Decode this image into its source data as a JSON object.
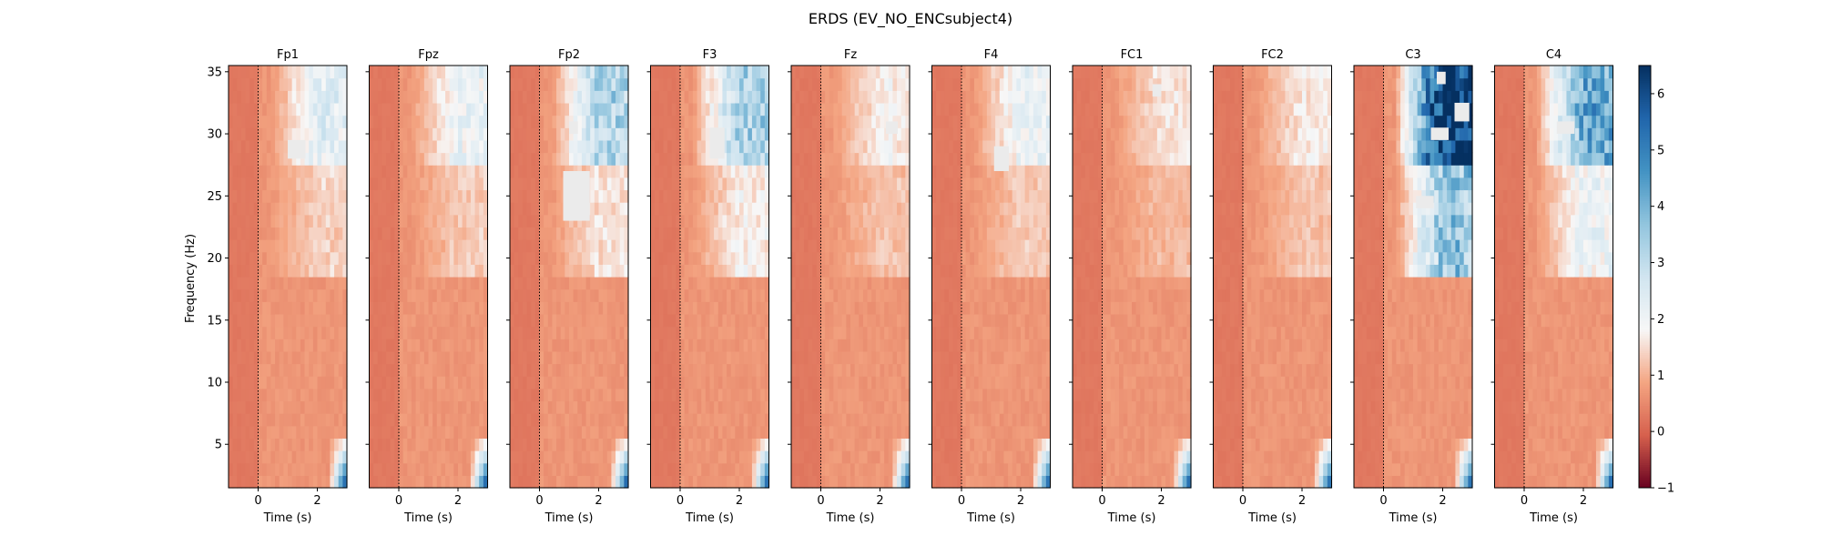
{
  "chart_data": {
    "type": "heatmap",
    "title": "ERDS (EV_NO_ENCsubject4)",
    "ylabel": "Frequency (Hz)",
    "xlabel": "Time (s)",
    "xlim": [
      -1,
      3
    ],
    "ylim": [
      1.5,
      35.5
    ],
    "x_ticks": [
      0,
      2
    ],
    "y_ticks": [
      5,
      10,
      15,
      20,
      25,
      30,
      35
    ],
    "event_time": 0,
    "colorbar": {
      "vmin": -1,
      "vmax": 6.5,
      "ticks": [
        -1,
        0,
        1,
        2,
        3,
        4,
        5,
        6
      ],
      "colormap": "RdBu",
      "colors": [
        "#67001f",
        "#d6604d",
        "#f4a582",
        "#f7f7f7",
        "#d1e5f0",
        "#92c5de",
        "#4393c3",
        "#2166ac",
        "#053061"
      ]
    },
    "panels": [
      {
        "channel": "Fp1",
        "high_beta": 1.8,
        "mid_beta": 0.8,
        "blobs": [
          {
            "t0": 1.0,
            "t1": 1.6,
            "f0": 28,
            "f1": 29.5
          }
        ]
      },
      {
        "channel": "Fpz",
        "high_beta": 1.6,
        "mid_beta": 0.7,
        "blobs": []
      },
      {
        "channel": "Fp2",
        "high_beta": 2.8,
        "mid_beta": 1.0,
        "blobs": [
          {
            "t0": 0.8,
            "t1": 1.7,
            "f0": 23,
            "f1": 27
          },
          {
            "t0": 1.0,
            "t1": 1.3,
            "f0": 30,
            "f1": 31
          }
        ]
      },
      {
        "channel": "F3",
        "high_beta": 2.8,
        "mid_beta": 1.2,
        "blobs": [
          {
            "t0": 1.0,
            "t1": 1.5,
            "f0": 28,
            "f1": 30.5
          }
        ]
      },
      {
        "channel": "Fz",
        "high_beta": 1.2,
        "mid_beta": 0.6,
        "blobs": [
          {
            "t0": 2.2,
            "t1": 2.6,
            "f0": 30,
            "f1": 31
          }
        ]
      },
      {
        "channel": "F4",
        "high_beta": 1.6,
        "mid_beta": 0.7,
        "blobs": [
          {
            "t0": 1.1,
            "t1": 1.6,
            "f0": 27,
            "f1": 29
          }
        ]
      },
      {
        "channel": "FC1",
        "high_beta": 1.0,
        "mid_beta": 0.5,
        "blobs": [
          {
            "t0": 1.7,
            "t1": 2.0,
            "f0": 33,
            "f1": 34
          }
        ]
      },
      {
        "channel": "FC2",
        "high_beta": 1.1,
        "mid_beta": 0.6,
        "blobs": []
      },
      {
        "channel": "C3",
        "high_beta": 6.5,
        "mid_beta": 3.2,
        "blobs": [
          {
            "t0": 1.6,
            "t1": 2.2,
            "f0": 29.5,
            "f1": 30.5
          },
          {
            "t0": 1.1,
            "t1": 1.7,
            "f0": 24,
            "f1": 25
          },
          {
            "t0": 2.4,
            "t1": 2.9,
            "f0": 31,
            "f1": 32.5
          },
          {
            "t0": 1.8,
            "t1": 2.1,
            "f0": 34,
            "f1": 35
          }
        ]
      },
      {
        "channel": "C4",
        "high_beta": 3.8,
        "mid_beta": 1.6,
        "blobs": [
          {
            "t0": 1.1,
            "t1": 1.7,
            "f0": 30,
            "f1": 31
          }
        ]
      }
    ]
  }
}
